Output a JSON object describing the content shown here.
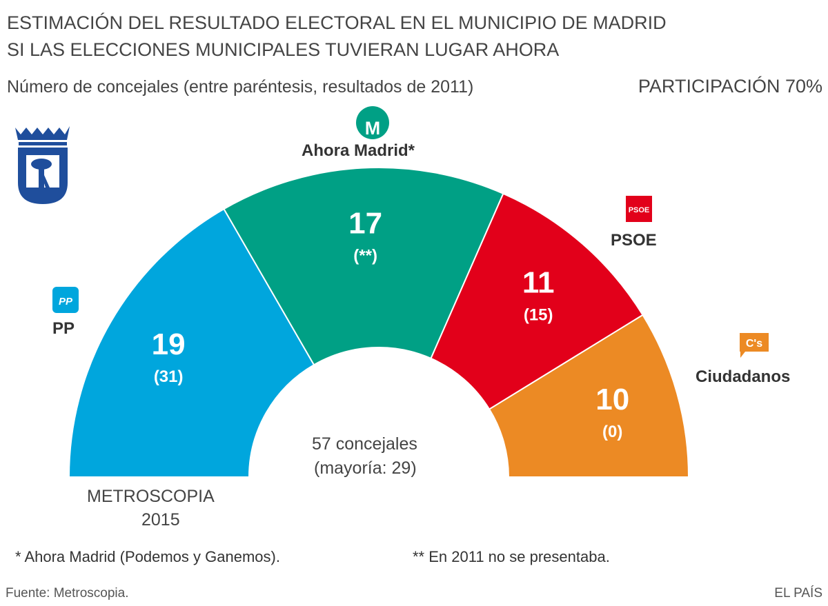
{
  "title_line1": "ESTIMACIÓN DEL RESULTADO ELECTORAL EN EL MUNICIPIO DE MADRID",
  "title_line2": "SI LAS ELECCIONES MUNICIPALES TUVIERAN LUGAR AHORA",
  "subtitle": "Número de concejales (entre paréntesis, resultados de 2011)",
  "participation": "PARTICIPACIÓN 70%",
  "center_line1": "57 concejales",
  "center_line2": "(mayoría: 29)",
  "pollster_line1": "METROSCOPIA",
  "pollster_line2": "2015",
  "footnote1": "* Ahora Madrid (Podemos y Ganemos).",
  "footnote2": "** En 2011 no se presentaba.",
  "source": "Fuente: Metroscopia.",
  "brand": "EL PAÍS",
  "logos": {
    "madrid": "madrid-coat-of-arms",
    "pp": "PP",
    "ahora": "M",
    "psoe": "PSOE",
    "cs": "C's"
  },
  "chart_data": {
    "type": "pie",
    "shape": "half-donut",
    "total": 57,
    "majority": 29,
    "series": [
      {
        "name": "PP",
        "value": 19,
        "previous": "(31)",
        "color": "#00a6dd"
      },
      {
        "name": "Ahora Madrid*",
        "value": 17,
        "previous": "(**)",
        "color": "#00a085"
      },
      {
        "name": "PSOE",
        "value": 11,
        "previous": "(15)",
        "color": "#e2001a"
      },
      {
        "name": "Ciudadanos",
        "value": 10,
        "previous": "(0)",
        "color": "#ec8a24"
      }
    ]
  }
}
